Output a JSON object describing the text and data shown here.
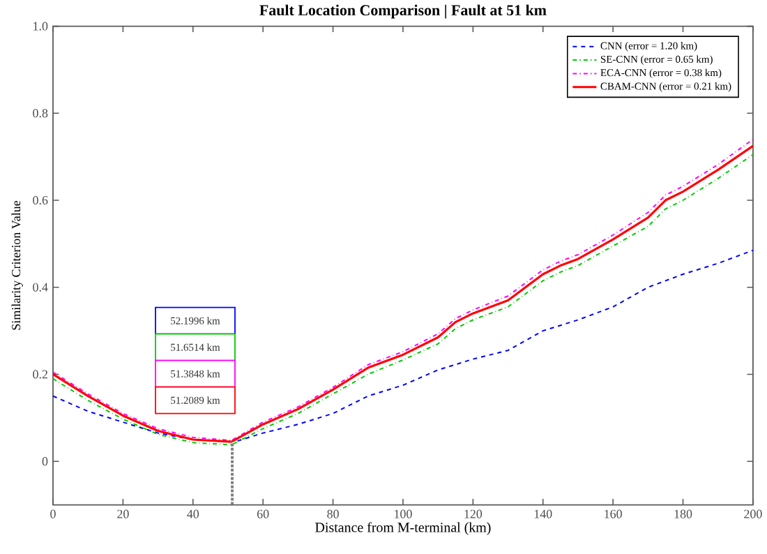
{
  "chart_data": {
    "type": "line",
    "title": "Fault Location Comparison | Fault at 51 km",
    "xlabel": "Distance from M-terminal (km)",
    "ylabel": "Similarity Criterion Value",
    "x": [
      0,
      10,
      20,
      30,
      40,
      51,
      60,
      70,
      80,
      90,
      100,
      110,
      115,
      120,
      130,
      140,
      145,
      150,
      160,
      170,
      175,
      180,
      190,
      200
    ],
    "xlim": [
      0,
      200
    ],
    "ylim": [
      -0.1,
      1.0
    ],
    "xticks": [
      0,
      20,
      40,
      60,
      80,
      100,
      120,
      140,
      160,
      180,
      200
    ],
    "yticks": [
      0,
      0.2,
      0.4,
      0.6,
      0.8,
      {
        "value": 1.0,
        "label": "1.0"
      }
    ],
    "grid": false,
    "legend": "top right",
    "series": [
      {
        "name": "CNN (error = 1.20 km)",
        "color": "#0000ff",
        "line_style": "dashed",
        "x": [
          0,
          10,
          20,
          30,
          40,
          52,
          60,
          70,
          80,
          90,
          100,
          110,
          120,
          130,
          140,
          150,
          160,
          170,
          180,
          190,
          200
        ],
        "values": [
          0.15,
          0.115,
          0.09,
          0.065,
          0.05,
          0.045,
          0.065,
          0.085,
          0.11,
          0.15,
          0.175,
          0.21,
          0.235,
          0.255,
          0.3,
          0.325,
          0.355,
          0.4,
          0.43,
          0.455,
          0.485
        ]
      },
      {
        "name": "SE-CNN (error = 0.65 km)",
        "color": "#00cc00",
        "line_style": "dashdot",
        "values": [
          0.19,
          0.14,
          0.097,
          0.062,
          0.043,
          0.038,
          0.075,
          0.11,
          0.155,
          0.2,
          0.233,
          0.27,
          0.305,
          0.325,
          0.355,
          0.415,
          0.435,
          0.45,
          0.495,
          0.54,
          0.58,
          0.6,
          0.65,
          0.705
        ]
      },
      {
        "name": "ECA-CNN (error = 0.38 km)",
        "color": "#ff00ff",
        "line_style": "dashdot",
        "values": [
          0.205,
          0.155,
          0.11,
          0.075,
          0.055,
          0.048,
          0.09,
          0.125,
          0.17,
          0.222,
          0.252,
          0.293,
          0.328,
          0.348,
          0.38,
          0.44,
          0.46,
          0.475,
          0.52,
          0.572,
          0.612,
          0.632,
          0.682,
          0.74
        ]
      },
      {
        "name": "CBAM-CNN (error = 0.21 km)",
        "color": "#ff0000",
        "line_style": "solid",
        "values": [
          0.2,
          0.15,
          0.105,
          0.07,
          0.05,
          0.045,
          0.085,
          0.12,
          0.165,
          0.215,
          0.245,
          0.285,
          0.32,
          0.34,
          0.37,
          0.43,
          0.45,
          0.465,
          0.51,
          0.56,
          0.6,
          0.62,
          0.67,
          0.725
        ]
      }
    ],
    "ref_lines": [
      {
        "axis": "x",
        "value": 51.2089,
        "color": "#808080",
        "line_style": "dotted"
      }
    ],
    "annotations": [
      "52.1996 km",
      "51.6514 km",
      "51.3848 km",
      "51.2089 km"
    ]
  }
}
